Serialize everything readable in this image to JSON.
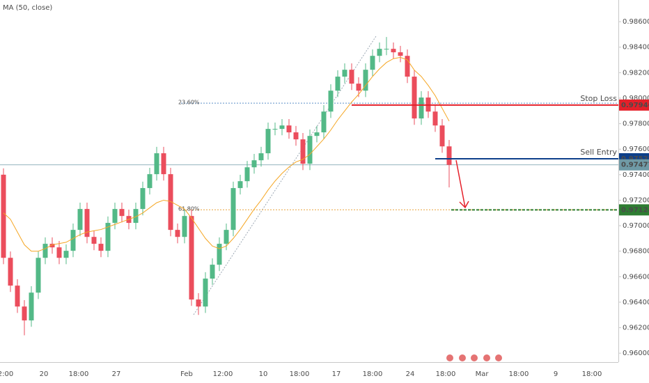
{
  "chart_data": {
    "type": "candlestick",
    "indicator_label": "MA (50, close)",
    "up_color": "#53b987",
    "down_color": "#eb4d5c",
    "ma_color": "#f5a623",
    "open": [
      0.974,
      0.96748,
      0.9653,
      0.96366,
      0.96257,
      0.96475,
      0.96748,
      0.96858,
      0.9683,
      0.96748,
      0.96803,
      0.96967,
      0.97131,
      0.96912,
      0.96858,
      0.96803,
      0.97022,
      0.97131,
      0.97076,
      0.97022,
      0.97131,
      0.97295,
      0.97404,
      0.97568,
      0.97404,
      0.96967,
      0.96912,
      0.97076,
      0.96421,
      0.96366,
      0.96585,
      0.96694,
      0.96858,
      0.96967,
      0.97295,
      0.97349,
      0.97458,
      0.97513,
      0.97568,
      0.97759,
      0.97759,
      0.97786,
      0.97732,
      0.97677,
      0.97486,
      0.97704,
      0.97732,
      0.97895,
      0.98059,
      0.98169,
      0.98223,
      0.98114,
      0.98059,
      0.98223,
      0.98332,
      0.98387,
      0.98387,
      0.9836,
      0.98332,
      0.98169,
      0.97841,
      0.98005,
      0.97895,
      0.97786,
      0.97622
    ],
    "high": [
      0.9745,
      0.96798,
      0.9658,
      0.96416,
      0.96525,
      0.96798,
      0.96908,
      0.96908,
      0.9688,
      0.96853,
      0.97017,
      0.97181,
      0.97181,
      0.96962,
      0.96908,
      0.97072,
      0.97181,
      0.97181,
      0.97126,
      0.97181,
      0.97345,
      0.97454,
      0.97618,
      0.97618,
      0.97454,
      0.97017,
      0.97126,
      0.97126,
      0.96471,
      0.96635,
      0.96744,
      0.96908,
      0.97017,
      0.97345,
      0.97399,
      0.97508,
      0.97563,
      0.97618,
      0.97809,
      0.97809,
      0.97836,
      0.97836,
      0.97782,
      0.97727,
      0.97754,
      0.97782,
      0.97945,
      0.98109,
      0.98219,
      0.98273,
      0.98273,
      0.98164,
      0.98273,
      0.98382,
      0.98437,
      0.9848,
      0.98437,
      0.9841,
      0.98382,
      0.98219,
      0.98055,
      0.98055,
      0.97945,
      0.97836,
      0.97672
    ],
    "low": [
      0.96698,
      0.9648,
      0.96316,
      0.9614,
      0.96207,
      0.96425,
      0.96698,
      0.9678,
      0.96698,
      0.96698,
      0.96753,
      0.96917,
      0.96862,
      0.96808,
      0.96753,
      0.96753,
      0.96972,
      0.97026,
      0.96972,
      0.96972,
      0.97081,
      0.97245,
      0.97354,
      0.97354,
      0.96917,
      0.96862,
      0.96862,
      0.96371,
      0.963,
      0.96316,
      0.96535,
      0.96644,
      0.96808,
      0.96917,
      0.97245,
      0.97299,
      0.97408,
      0.97463,
      0.97518,
      0.97709,
      0.97709,
      0.97682,
      0.97627,
      0.97436,
      0.97436,
      0.97654,
      0.97682,
      0.97845,
      0.98009,
      0.98119,
      0.98064,
      0.98009,
      0.98009,
      0.98173,
      0.98282,
      0.98337,
      0.9831,
      0.98282,
      0.98119,
      0.97791,
      0.97791,
      0.97845,
      0.97736,
      0.97572,
      0.973
    ],
    "close": [
      0.96748,
      0.9653,
      0.96366,
      0.96257,
      0.96475,
      0.96748,
      0.96858,
      0.9683,
      0.96748,
      0.96803,
      0.96967,
      0.97131,
      0.96912,
      0.96858,
      0.96803,
      0.97022,
      0.97131,
      0.97076,
      0.97022,
      0.97131,
      0.97295,
      0.97404,
      0.97568,
      0.97404,
      0.96967,
      0.96912,
      0.97076,
      0.96421,
      0.96366,
      0.96585,
      0.96694,
      0.96858,
      0.96967,
      0.97295,
      0.97349,
      0.97458,
      0.97513,
      0.97568,
      0.97759,
      0.97759,
      0.97786,
      0.97732,
      0.97677,
      0.97486,
      0.97704,
      0.97732,
      0.97895,
      0.98059,
      0.98169,
      0.98223,
      0.98114,
      0.98059,
      0.98223,
      0.98332,
      0.98387,
      0.98387,
      0.9836,
      0.98332,
      0.98169,
      0.97841,
      0.98005,
      0.97895,
      0.97786,
      0.97622,
      0.97477
    ],
    "ma": [
      0.971,
      0.9705,
      0.9695,
      0.9685,
      0.968,
      0.968,
      0.9682,
      0.9685,
      0.9686,
      0.9687,
      0.969,
      0.9693,
      0.9695,
      0.9696,
      0.9697,
      0.9699,
      0.9701,
      0.9703,
      0.9705,
      0.9707,
      0.971,
      0.9714,
      0.9718,
      0.972,
      0.9719,
      0.9716,
      0.9713,
      0.9706,
      0.9698,
      0.969,
      0.9684,
      0.9682,
      0.9684,
      0.969,
      0.9697,
      0.9705,
      0.9713,
      0.972,
      0.9728,
      0.9735,
      0.9741,
      0.9746,
      0.975,
      0.9752,
      0.9756,
      0.9762,
      0.9768,
      0.9775,
      0.9783,
      0.979,
      0.9797,
      0.9803,
      0.981,
      0.9817,
      0.9823,
      0.9828,
      0.9831,
      0.9832,
      0.983,
      0.9822,
      0.9817,
      0.981,
      0.9802,
      0.9792,
      0.9782
    ],
    "levels": [
      {
        "name": "Stop Loss",
        "value": 0.97946,
        "color": "#e5202a"
      },
      {
        "name": "Sell Entry",
        "value": 0.97525,
        "color": "#0d3f8a"
      },
      {
        "value": 0.97124,
        "color": "#2e7d32"
      }
    ],
    "fib_levels": [
      {
        "label": "23.60%",
        "value": 0.97961,
        "color": "#5b8fc7"
      },
      {
        "label": "61.80%",
        "value": 0.97125,
        "color": "#e8a13a"
      }
    ],
    "current_price_color": "#6f9aa6",
    "ylim": [
      0.9593,
      0.9877
    ],
    "yticks": [
      {
        "value": 0.986,
        "label": "0.98600"
      },
      {
        "value": 0.984,
        "label": "0.98400"
      },
      {
        "value": 0.982,
        "label": "0.98200"
      },
      {
        "value": 0.98,
        "label": "0.98000"
      },
      {
        "value": 0.978,
        "label": "0.97800"
      },
      {
        "value": 0.976,
        "label": "0.97600"
      },
      {
        "value": 0.974,
        "label": "0.97400"
      },
      {
        "value": 0.972,
        "label": "0.97200"
      },
      {
        "value": 0.97,
        "label": "0.97000"
      },
      {
        "value": 0.968,
        "label": "0.96800"
      },
      {
        "value": 0.966,
        "label": "0.96600"
      },
      {
        "value": 0.964,
        "label": "0.96400"
      },
      {
        "value": 0.962,
        "label": "0.96200"
      },
      {
        "value": 0.96,
        "label": "0.96000"
      }
    ],
    "xtick_labels": [
      "2:00",
      "20",
      "18:00",
      "27",
      "Feb",
      "12:00",
      "10",
      "18:00",
      "17",
      "18:00",
      "24",
      "18:00",
      "Mar",
      "18:00",
      "9",
      "18:00"
    ]
  }
}
